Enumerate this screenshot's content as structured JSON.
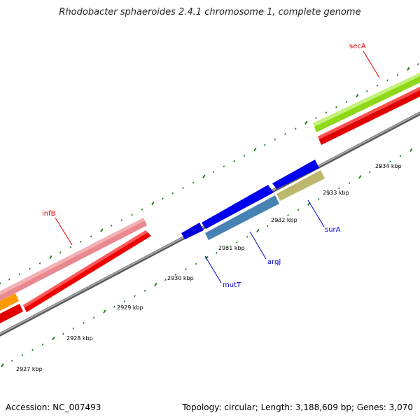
{
  "title": "Rhodobacter sphaeroides 2.4.1 chromosome 1, complete genome",
  "footer": {
    "accession": "Accession: NC_007493",
    "summary": "Topology: circular; Length: 3,188,609 bp; Genes: 3,070"
  },
  "colors": {
    "backbone": "#808080",
    "tick": "#2a7a2a",
    "label_red": "#e00000",
    "label_blue": "#0000cc"
  },
  "ticks": [
    "2927 kbp",
    "2928 kbp",
    "2929 kbp",
    "2930 kbp",
    "2931 kbp",
    "2932 kbp",
    "2933 kbp",
    "2934 kbp"
  ],
  "gene_labels": {
    "secA": "secA",
    "infB": "infB",
    "mutT": "mutT",
    "argJ": "argJ",
    "surA": "surA"
  }
}
